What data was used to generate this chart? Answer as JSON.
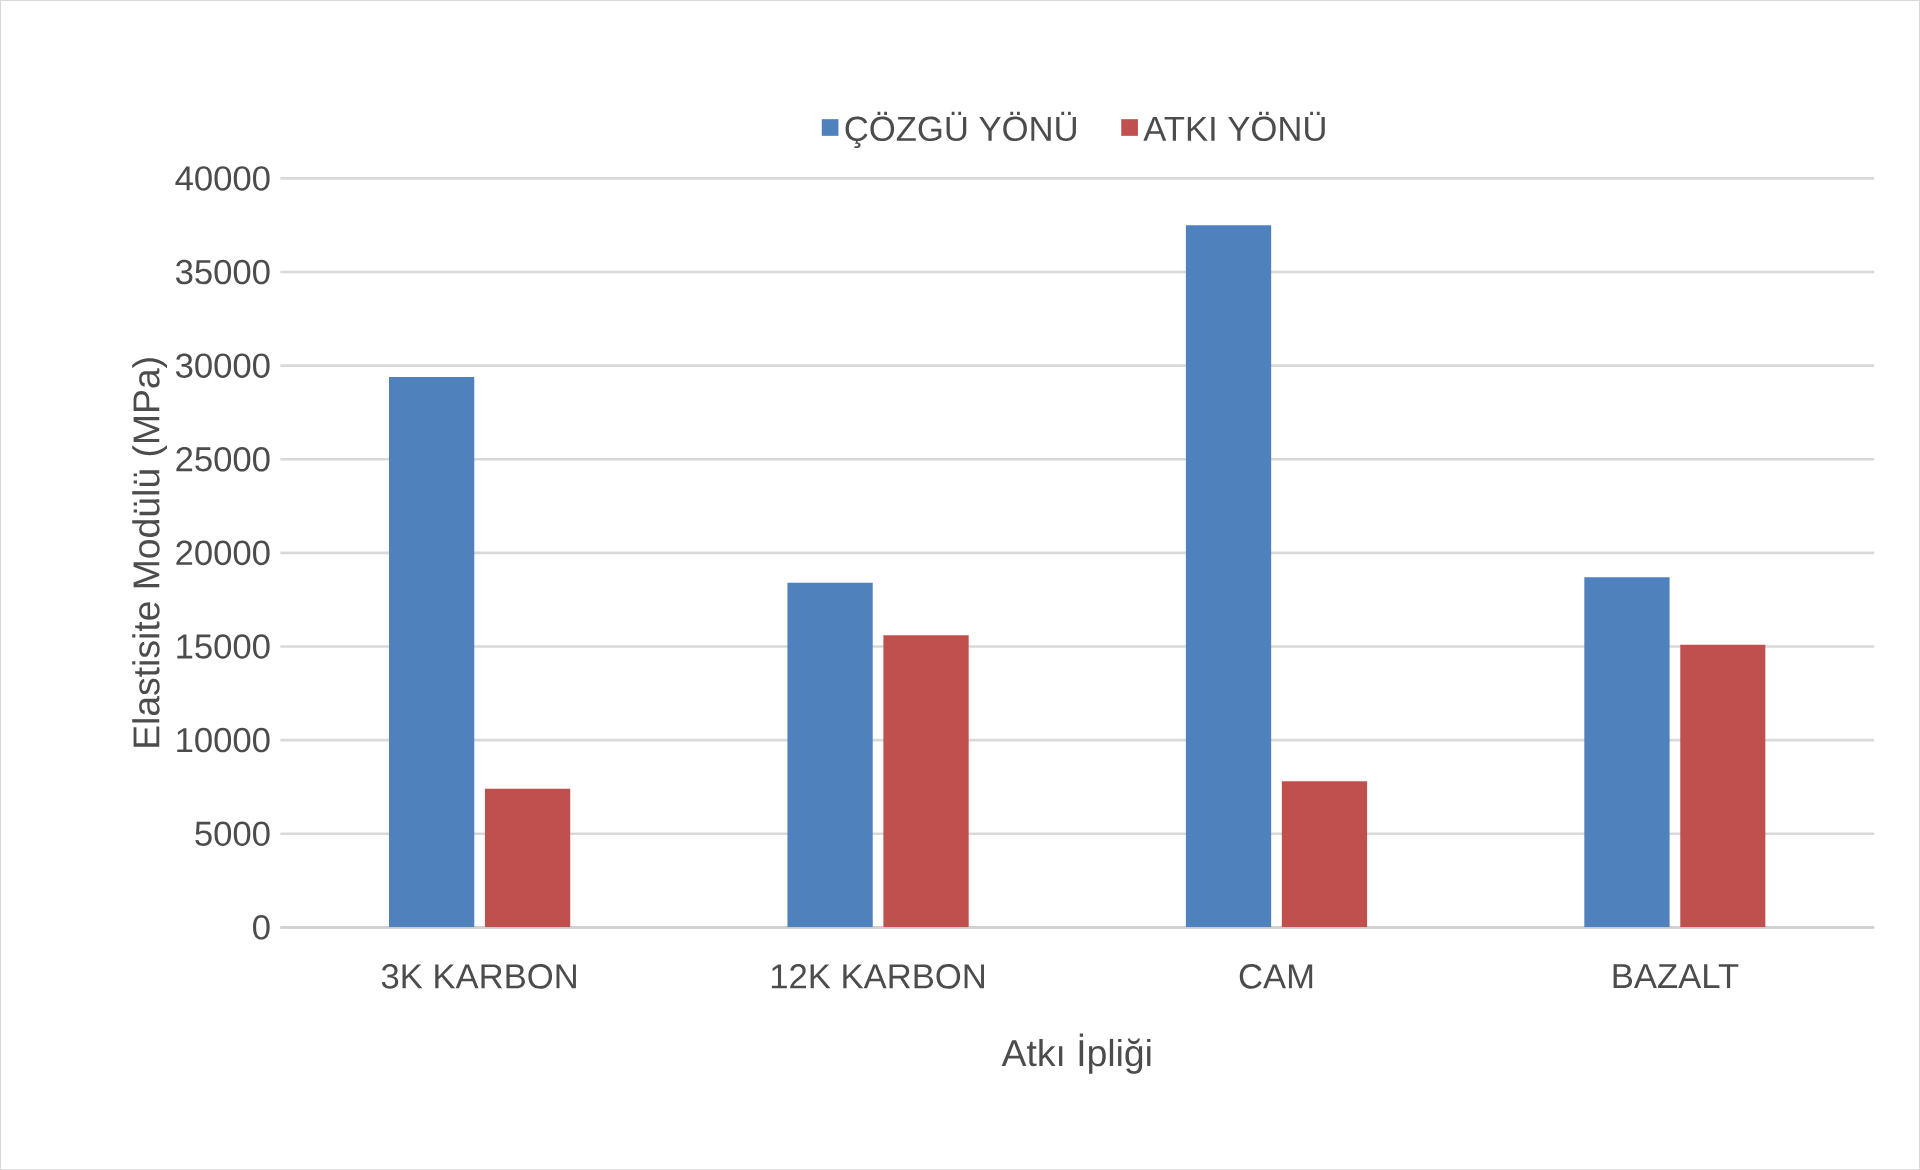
{
  "chart_data": {
    "type": "bar",
    "xlabel": "Atkı İpliği",
    "ylabel": "Elastisite Modülü (MPa)",
    "categories": [
      "3K KARBON",
      "12K KARBON",
      "CAM",
      "BAZALT"
    ],
    "series": [
      {
        "name": "ÇÖZGÜ YÖNÜ",
        "color": "#4f81bd",
        "values": [
          29400,
          18400,
          37500,
          18700
        ]
      },
      {
        "name": "ATKI YÖNÜ",
        "color": "#c0504d",
        "values": [
          7400,
          15600,
          7800,
          15100
        ]
      }
    ],
    "ylim": [
      0,
      40000
    ],
    "yticks": [
      0,
      5000,
      10000,
      15000,
      20000,
      25000,
      30000,
      35000,
      40000
    ],
    "grid": "y",
    "legend": "top"
  }
}
